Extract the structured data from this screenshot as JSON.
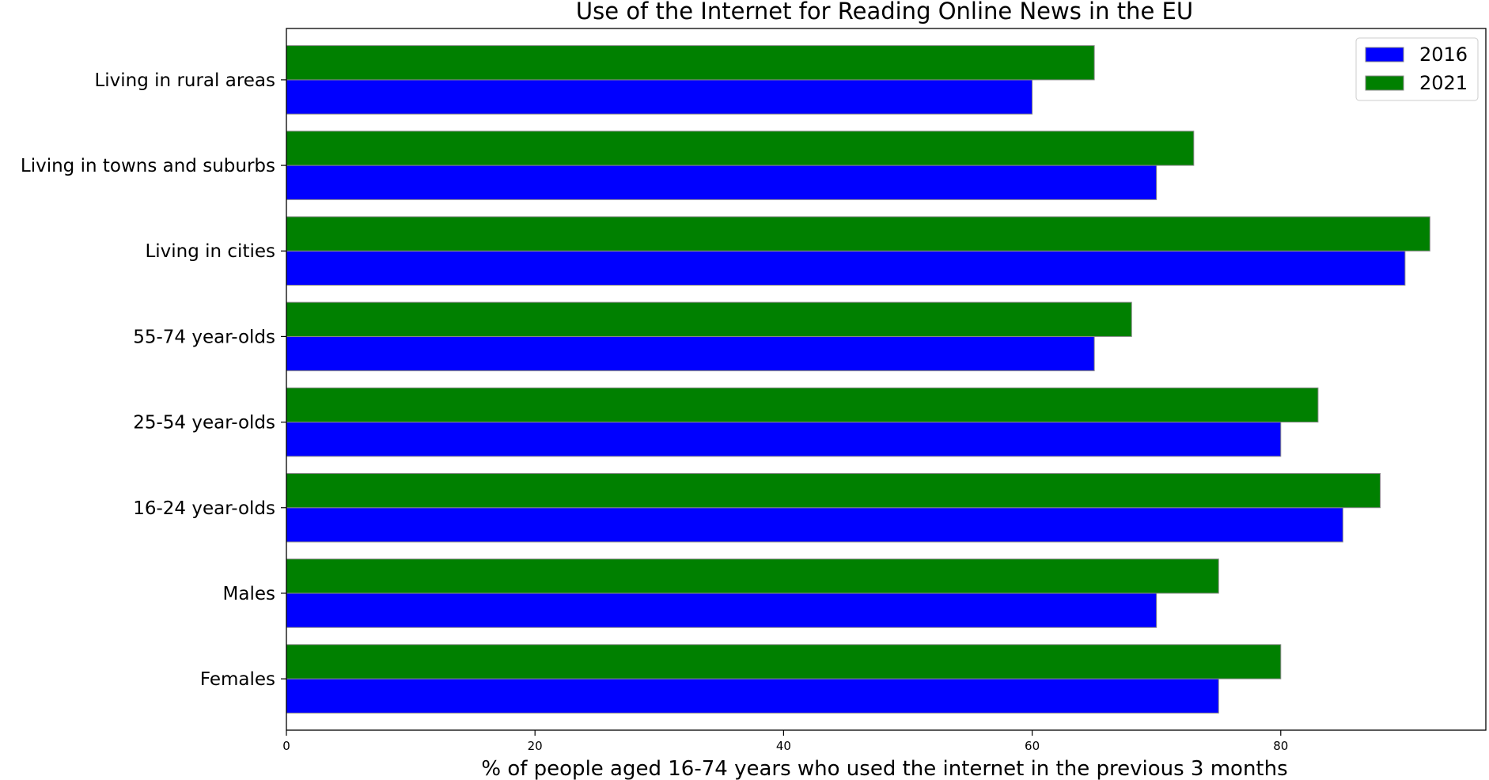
{
  "chart_data": {
    "type": "bar",
    "orientation": "horizontal",
    "title": "Use of the Internet for Reading Online News in the EU",
    "xlabel": "% of people aged 16-74 years who used the internet in the previous 3 months",
    "ylabel": "",
    "xlim": [
      0,
      96.5
    ],
    "xticks": [
      0,
      20,
      40,
      60,
      80
    ],
    "categories": [
      "Females",
      "Males",
      "16-24 year-olds",
      "25-54 year-olds",
      "55-74 year-olds",
      "Living in cities",
      "Living in towns and suburbs",
      "Living in rural areas"
    ],
    "series": [
      {
        "name": "2016",
        "color": "#0000ff",
        "values": [
          75,
          70,
          85,
          80,
          65,
          90,
          70,
          60
        ]
      },
      {
        "name": "2021",
        "color": "#008000",
        "values": [
          80,
          75,
          88,
          83,
          68,
          92,
          73,
          65
        ]
      }
    ],
    "legend": "top-right",
    "grid": false
  }
}
